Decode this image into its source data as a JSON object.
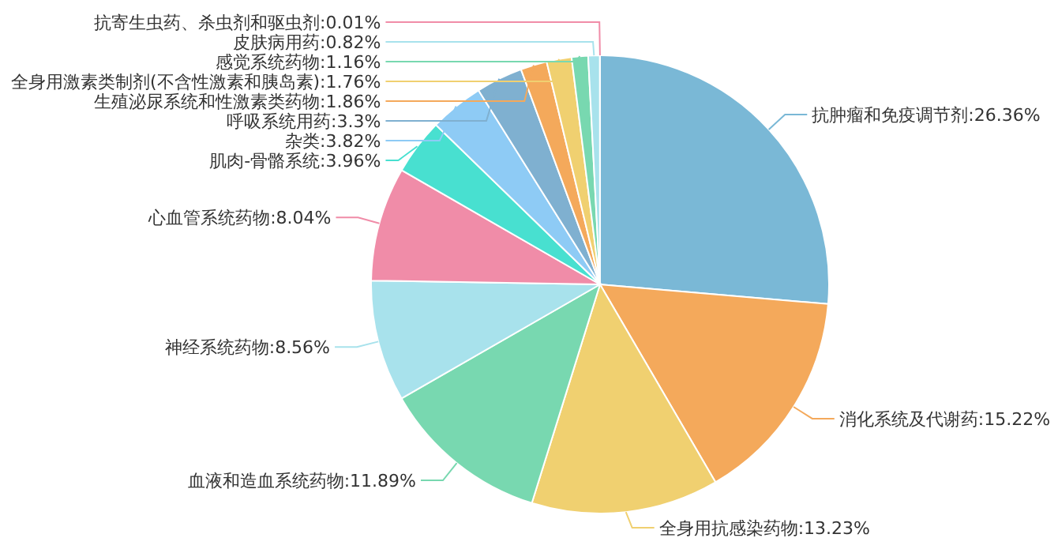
{
  "chart_data": {
    "type": "pie",
    "categories": [
      "抗肿瘤和免疫调节剂",
      "消化系统及代谢药",
      "全身用抗感染药物",
      "血液和造血系统药物",
      "神经系统药物",
      "心血管系统药物",
      "肌肉-骨骼系统",
      "杂类",
      "呼吸系统用药",
      "生殖泌尿系统和性激素类药物",
      "全身用激素类制剂(不含性激素和胰岛素)",
      "感觉系统药物",
      "皮肤病用药",
      "抗寄生虫药、杀虫剂和驱虫剂"
    ],
    "values": [
      26.36,
      15.22,
      13.23,
      11.89,
      8.56,
      8.04,
      3.96,
      3.82,
      3.3,
      1.86,
      1.76,
      1.16,
      0.82,
      0.01
    ],
    "value_labels": [
      "26.36%",
      "15.22%",
      "13.23%",
      "11.89%",
      "8.56%",
      "8.04%",
      "3.96%",
      "3.82%",
      "3.3%",
      "1.86%",
      "1.76%",
      "1.16%",
      "0.82%",
      "0.01%"
    ],
    "colors": [
      "#7ab8d6",
      "#f4a95b",
      "#f0d070",
      "#78d8b0",
      "#a8e2ec",
      "#f08ca8",
      "#48e0d0",
      "#8ecbf5",
      "#7fb0d0",
      "#f4a95b",
      "#f0d070",
      "#78d8b0",
      "#a8e2ec",
      "#f08ca8"
    ]
  }
}
